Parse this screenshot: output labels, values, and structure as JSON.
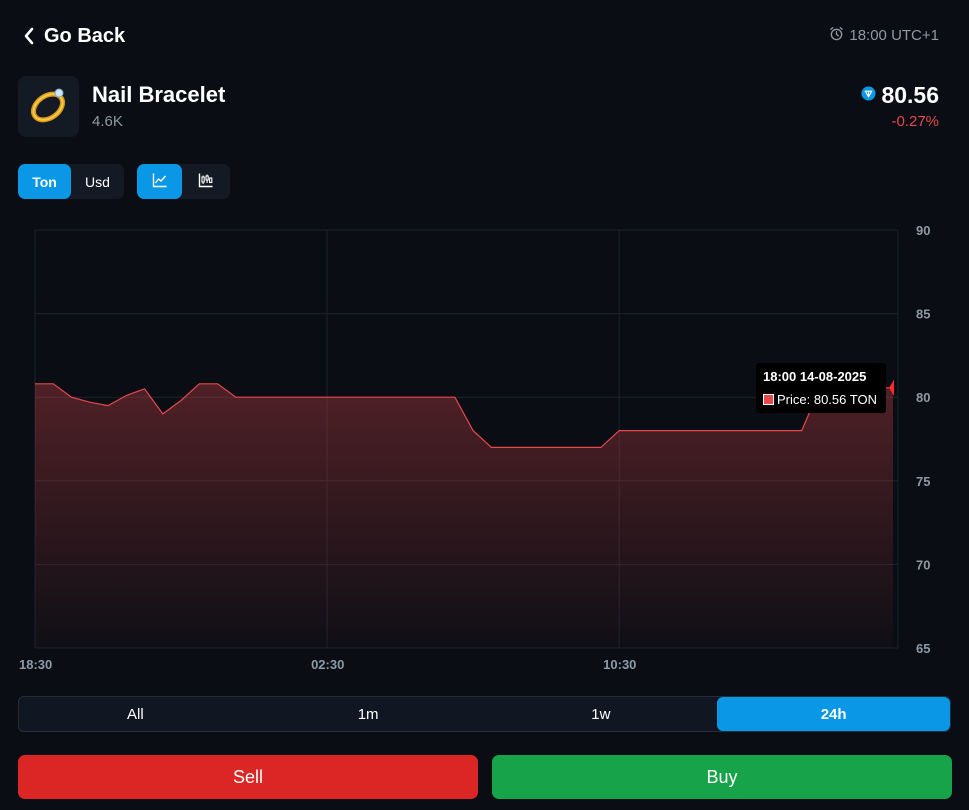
{
  "header": {
    "back_label": "Go Back",
    "clock_text": "18:00 UTC+1"
  },
  "item": {
    "name": "Nail Bracelet",
    "sub": "4.6K",
    "price": "80.56",
    "change": "-0.27%",
    "icon": "ring-icon"
  },
  "toggles": {
    "currency": [
      "Ton",
      "Usd"
    ],
    "currency_active": "Ton",
    "chart_types": [
      "line-chart-icon",
      "candlestick-chart-icon"
    ],
    "chart_type_active": "line-chart-icon"
  },
  "tooltip": {
    "title": "18:00 14-08-2025",
    "price_text": "Price: 80.56 TON"
  },
  "ranges": {
    "items": [
      "All",
      "1m",
      "1w",
      "24h"
    ],
    "active": "24h"
  },
  "actions": {
    "sell_label": "Sell",
    "buy_label": "Buy"
  },
  "colors": {
    "accent": "#0a98e6",
    "line": "#e5484d",
    "sell": "#dc2626",
    "buy": "#16a34a",
    "negative": "#e5484d"
  },
  "chart_data": {
    "type": "area",
    "x_ticks": [
      "18:30",
      "02:30",
      "10:30"
    ],
    "y_ticks": [
      65,
      70,
      75,
      80,
      85,
      90
    ],
    "ylim": [
      65,
      90
    ],
    "x": [
      0,
      0.5,
      1,
      1.5,
      2,
      2.5,
      3,
      3.5,
      4,
      4.5,
      5,
      5.5,
      6,
      6.5,
      7,
      7.5,
      8,
      8.5,
      9,
      9.5,
      10,
      10.5,
      11,
      11.5,
      12,
      12.5,
      13,
      13.5,
      14,
      14.5,
      15,
      15.5,
      16,
      16.5,
      17,
      17.5,
      18,
      18.5,
      19,
      19.5,
      20,
      20.5,
      21,
      21.5,
      22,
      22.5,
      23,
      23.5
    ],
    "xlim": [
      0,
      23.5
    ],
    "values": [
      80.8,
      80.8,
      80.0,
      79.7,
      79.5,
      80.1,
      80.5,
      79.0,
      79.8,
      80.8,
      80.8,
      80.0,
      80.0,
      80.0,
      80.0,
      80.0,
      80.0,
      80.0,
      80.0,
      80.0,
      80.0,
      80.0,
      80.0,
      80.0,
      78.0,
      77.0,
      77.0,
      77.0,
      77.0,
      77.0,
      77.0,
      77.0,
      78.0,
      78.0,
      78.0,
      78.0,
      78.0,
      78.0,
      78.0,
      78.0,
      78.0,
      78.0,
      78.0,
      80.56,
      80.56,
      80.56,
      80.56,
      80.56
    ],
    "series_name": "Price",
    "unit": "TON"
  }
}
